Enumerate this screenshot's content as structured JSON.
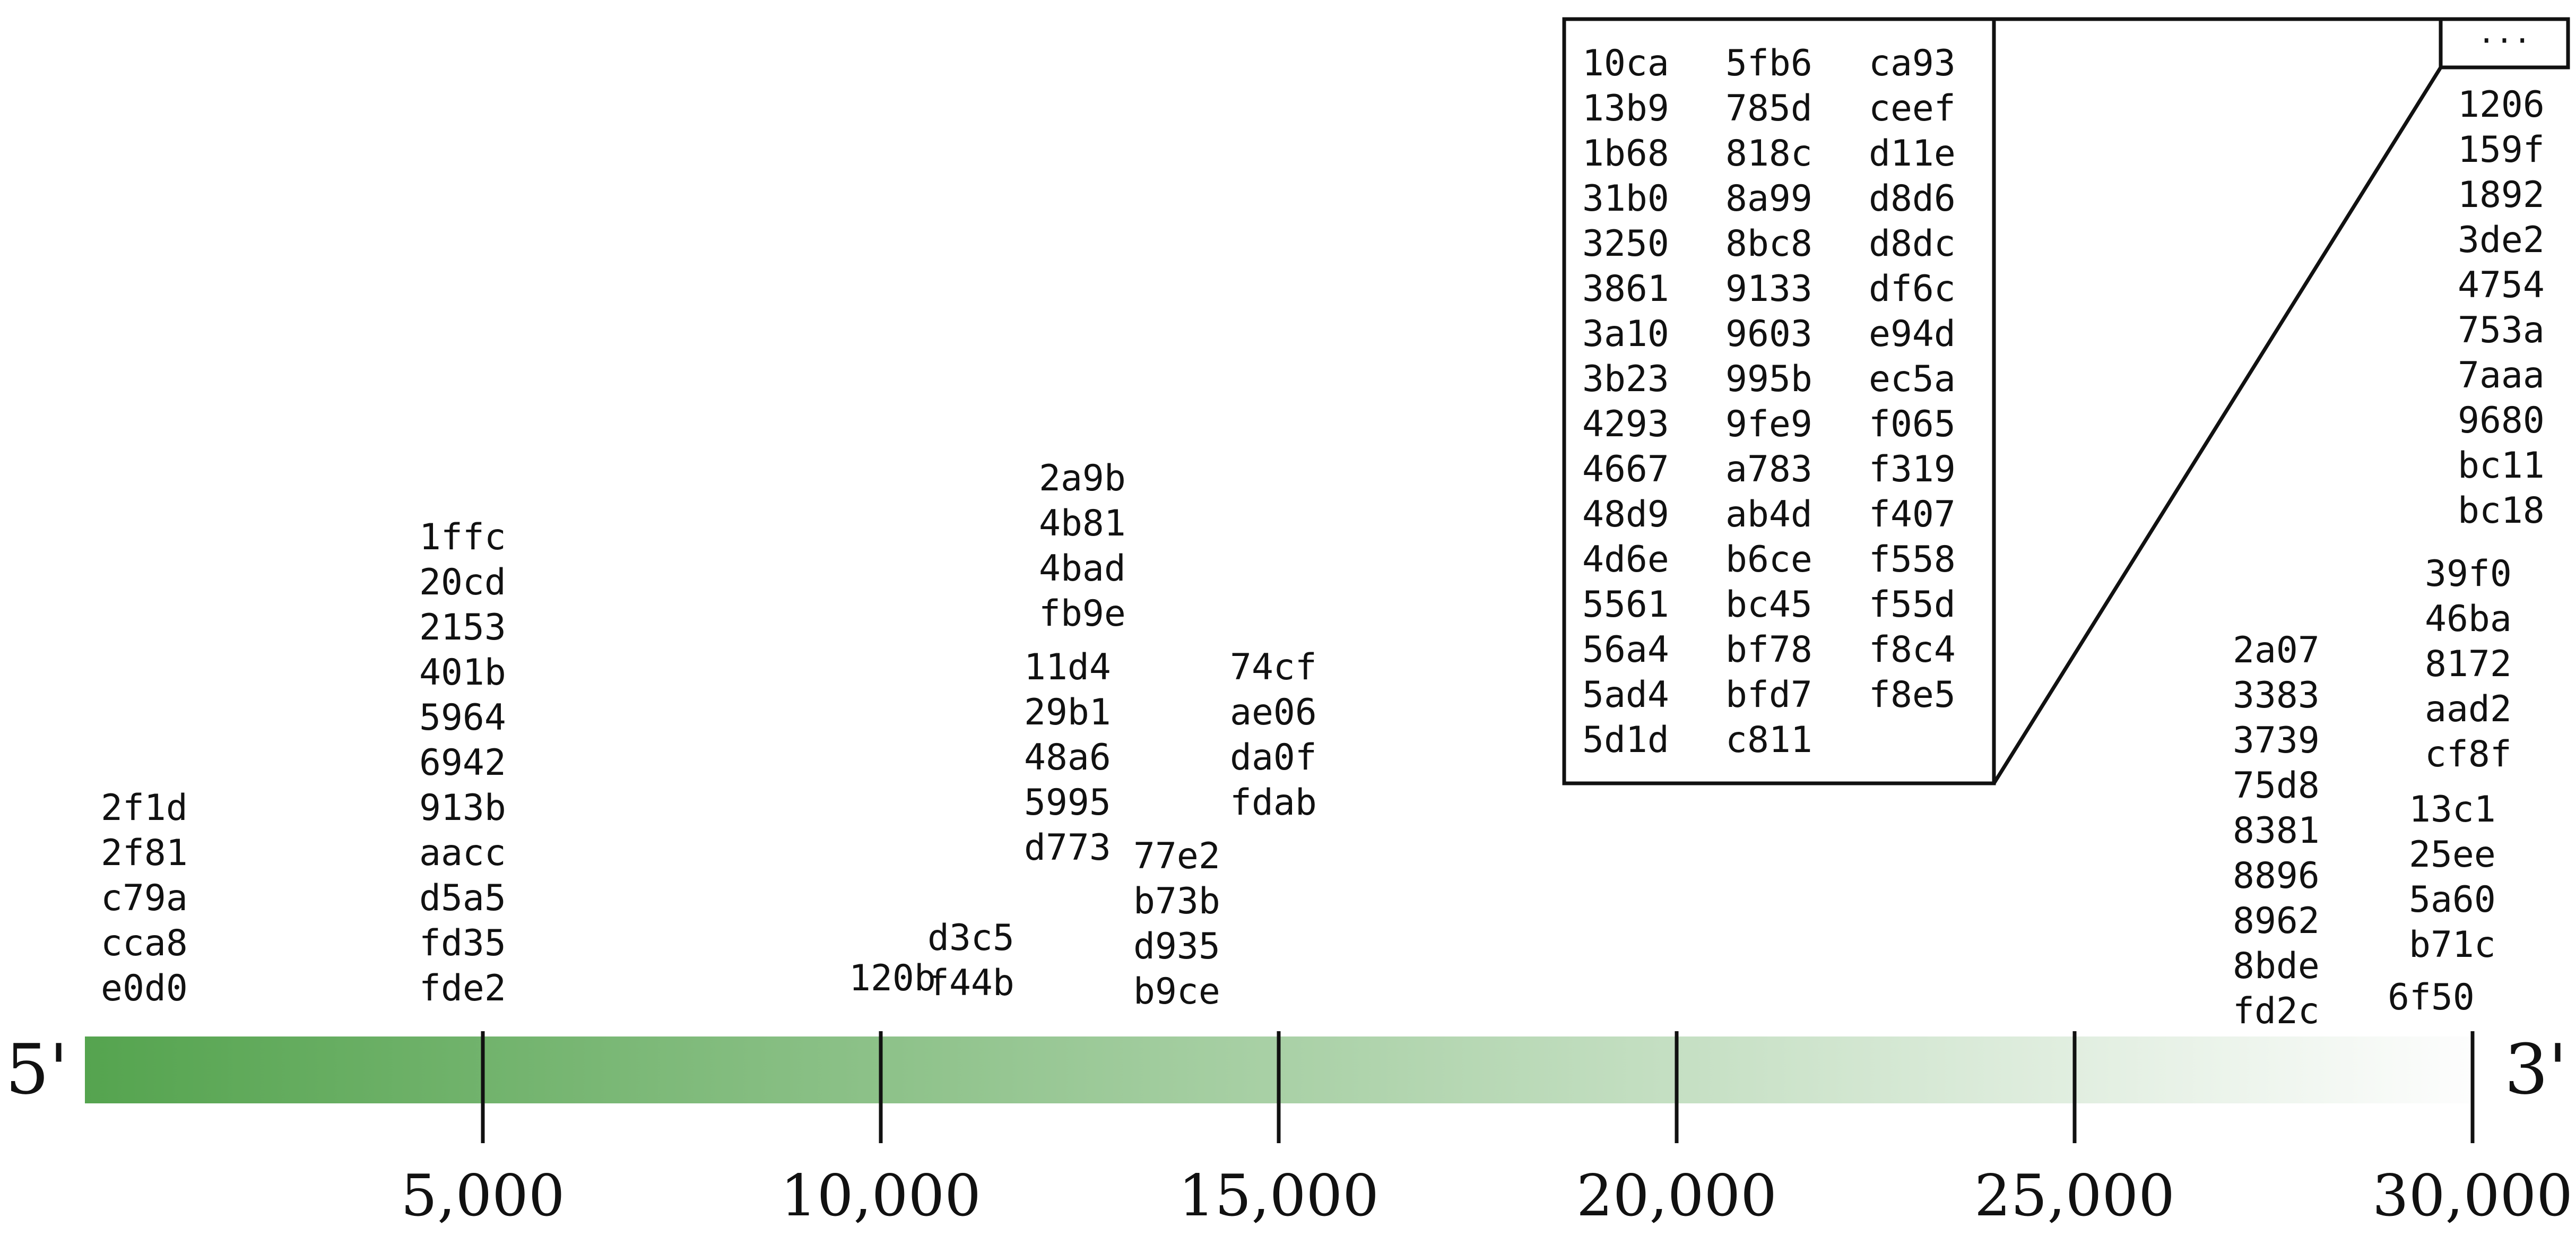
{
  "genome": {
    "end_5": "5'",
    "end_3": "3'",
    "max_position": 30000,
    "gradient_colors": {
      "start": "#55a44f",
      "end": "#fdfdfd"
    }
  },
  "axis": {
    "ticks": [
      {
        "value": 5000,
        "label": "5,000"
      },
      {
        "value": 10000,
        "label": "10,000"
      },
      {
        "value": 15000,
        "label": "15,000"
      },
      {
        "value": 20000,
        "label": "20,000"
      },
      {
        "value": 25000,
        "label": "25,000"
      },
      {
        "value": 30000,
        "label": "30,000"
      }
    ]
  },
  "clusters": [
    {
      "position": 1000,
      "ids": [
        "2f1d",
        "2f81",
        "c79a",
        "cca8",
        "e0d0"
      ]
    },
    {
      "position": 5000,
      "ids": [
        "1ffc",
        "20cd",
        "2153",
        "401b",
        "5964",
        "6942",
        "913b",
        "aacc",
        "d5a5",
        "fd35",
        "fde2"
      ]
    },
    {
      "position": 9800,
      "ids": [
        "120b"
      ]
    },
    {
      "position": 10800,
      "ids": [
        "d3c5",
        "f44b"
      ]
    },
    {
      "position": 12000,
      "ids": [
        "11d4",
        "29b1",
        "48a6",
        "5995",
        "d773"
      ]
    },
    {
      "position": 12200,
      "ids": [
        "2a9b",
        "4b81",
        "4bad",
        "fb9e"
      ]
    },
    {
      "position": 13800,
      "ids": [
        "77e2",
        "b73b",
        "d935",
        "b9ce"
      ]
    },
    {
      "position": 14600,
      "ids": [
        "74cf",
        "ae06",
        "da0f",
        "fdab"
      ]
    },
    {
      "position": 27800,
      "ids": [
        "2a07",
        "3383",
        "3739",
        "75d8",
        "8381",
        "8896",
        "8962",
        "8bde",
        "fd2c"
      ]
    },
    {
      "position": 29500,
      "ids": [
        "6f50"
      ]
    },
    {
      "position": 29600,
      "ids": [
        "13c1",
        "25ee",
        "5a60",
        "b71c"
      ]
    },
    {
      "position": 29800,
      "ids": [
        "39f0",
        "46ba",
        "8172",
        "aad2",
        "cf8f"
      ]
    },
    {
      "position": 30000,
      "ids": [
        "1206",
        "159f",
        "1892",
        "3de2",
        "4754",
        "753a",
        "7aaa",
        "9680",
        "bc11",
        "bc18"
      ]
    }
  ],
  "overflow": {
    "ellipsis": "···",
    "columns": [
      [
        "10ca",
        "13b9",
        "1b68",
        "31b0",
        "3250",
        "3861",
        "3a10",
        "3b23",
        "4293",
        "4667",
        "48d9",
        "4d6e",
        "5561",
        "56a4",
        "5ad4",
        "5d1d"
      ],
      [
        "5fb6",
        "785d",
        "818c",
        "8a99",
        "8bc8",
        "9133",
        "9603",
        "995b",
        "9fe9",
        "a783",
        "ab4d",
        "b6ce",
        "bc45",
        "bf78",
        "bfd7",
        "c811"
      ],
      [
        "ca93",
        "ceef",
        "d11e",
        "d8d6",
        "d8dc",
        "df6c",
        "e94d",
        "ec5a",
        "f065",
        "f319",
        "f407",
        "f558",
        "f55d",
        "f8c4",
        "f8e5"
      ]
    ]
  }
}
